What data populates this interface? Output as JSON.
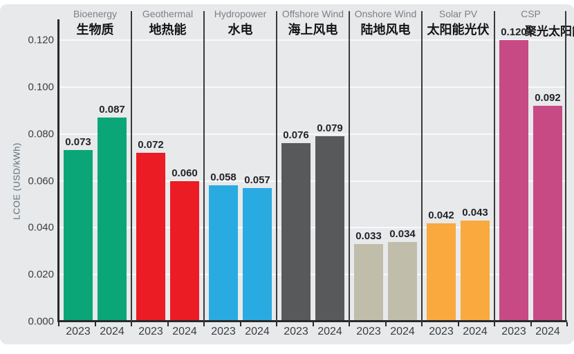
{
  "chart_data": {
    "type": "bar",
    "title": "",
    "ylabel": "LCOE (USD/kWh)",
    "ylim": [
      0,
      0.12
    ],
    "ytick_step": 0.02,
    "grid": true,
    "legend_position": "none",
    "years": [
      "2023",
      "2024"
    ],
    "yticks": [
      {
        "label": "0.120",
        "value": 0.12
      },
      {
        "label": "0.100",
        "value": 0.1
      },
      {
        "label": "0.080",
        "value": 0.08
      },
      {
        "label": "0.060",
        "value": 0.06
      },
      {
        "label": "0.040",
        "value": 0.04
      },
      {
        "label": "0.020",
        "value": 0.02
      },
      {
        "label": "0.000",
        "value": 0.0
      }
    ],
    "categories": [
      {
        "name_en": "Bioenergy",
        "name_zh": "生物质",
        "color": "#0AA678",
        "values": [
          0.073,
          0.087
        ],
        "labels": [
          "0.073",
          "0.087"
        ]
      },
      {
        "name_en": "Geothermal",
        "name_zh": "地热能",
        "color": "#EB1C24",
        "values": [
          0.072,
          0.06
        ],
        "labels": [
          "0.072",
          "0.060"
        ]
      },
      {
        "name_en": "Hydropower",
        "name_zh": "水电",
        "color": "#29ABE2",
        "values": [
          0.058,
          0.057
        ],
        "labels": [
          "0.058",
          "0.057"
        ]
      },
      {
        "name_en": "Offshore Wind",
        "name_zh": "海上风电",
        "color": "#58595B",
        "values": [
          0.076,
          0.079
        ],
        "labels": [
          "0.076",
          "0.079"
        ]
      },
      {
        "name_en": "Onshore Wind",
        "name_zh": "陆地风电",
        "color": "#C0BDAB",
        "values": [
          0.033,
          0.034
        ],
        "labels": [
          "0.033",
          "0.034"
        ]
      },
      {
        "name_en": "Solar PV",
        "name_zh": "太阳能光伏",
        "color": "#F9A93E",
        "values": [
          0.042,
          0.043
        ],
        "labels": [
          "0.042",
          "0.043"
        ]
      },
      {
        "name_en": "CSP",
        "name_zh": "聚光太阳能",
        "color": "#C74A85",
        "values": [
          0.12,
          0.092
        ],
        "labels": [
          "0.120",
          "0.092"
        ]
      }
    ]
  },
  "colors": {
    "panel_bg": "#E7E9EB",
    "gridline": "#F8F9FA",
    "axis": "#29292B"
  }
}
